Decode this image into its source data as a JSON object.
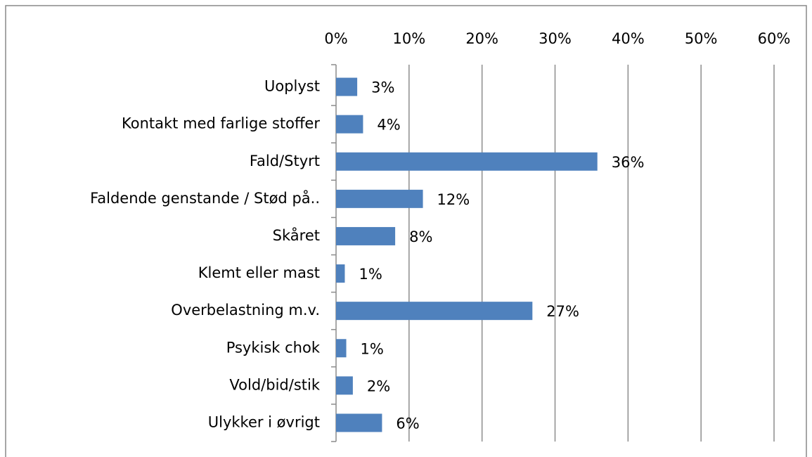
{
  "chart_data": {
    "type": "hbar",
    "categories": [
      "Uoplyst",
      "Kontakt med farlige stoffer",
      "Fald/Styrt",
      "Faldende genstande / Stød på..",
      "Skåret",
      "Klemt eller mast",
      "Overbelastning  m.v.",
      "Psykisk chok",
      "Vold/bid/stik",
      "Ulykker i øvrigt"
    ],
    "values": [
      2.9,
      3.7,
      35.8,
      11.9,
      8.1,
      1.2,
      26.9,
      1.4,
      2.3,
      6.3
    ],
    "value_labels": [
      "3%",
      "4%",
      "36%",
      "12%",
      "8%",
      "1%",
      "27%",
      "1%",
      "2%",
      "6%"
    ],
    "color": "#4f81bd",
    "xlim": [
      0,
      60
    ],
    "xticks": [
      {
        "value": 0,
        "label": "0%"
      },
      {
        "value": 10,
        "label": "10%"
      },
      {
        "value": 20,
        "label": "20%"
      },
      {
        "value": 30,
        "label": "30%"
      },
      {
        "value": 40,
        "label": "40%"
      },
      {
        "value": 50,
        "label": "50%"
      },
      {
        "value": 60,
        "label": "60%"
      }
    ],
    "grid": true
  }
}
